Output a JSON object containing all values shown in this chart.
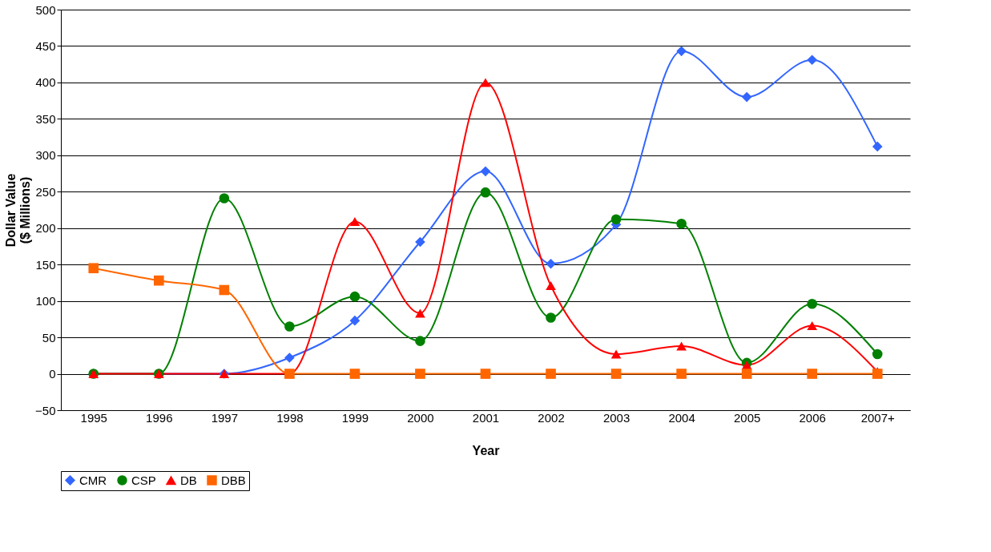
{
  "chart_data": {
    "type": "line",
    "xlabel": "Year",
    "ylabel": "Dollar Value\n($ Millions)",
    "categories": [
      "1995",
      "1996",
      "1997",
      "1998",
      "1999",
      "2000",
      "2001",
      "2002",
      "2003",
      "2004",
      "2005",
      "2006",
      "2007+"
    ],
    "series": [
      {
        "name": "CMR",
        "color": "#3366ff",
        "marker": "diamond",
        "values": [
          0,
          0,
          0,
          22,
          73,
          181,
          278,
          151,
          205,
          443,
          380,
          431,
          312
        ]
      },
      {
        "name": "CSP",
        "color": "#008000",
        "marker": "circle",
        "values": [
          0,
          0,
          241,
          65,
          106,
          45,
          249,
          77,
          212,
          206,
          15,
          96,
          27
        ]
      },
      {
        "name": "DB",
        "color": "#ff0000",
        "marker": "triangle",
        "values": [
          0,
          0,
          0,
          0,
          209,
          83,
          400,
          121,
          27,
          38,
          12,
          66,
          3
        ]
      },
      {
        "name": "DBB",
        "color": "#ff6600",
        "marker": "square",
        "values": [
          145,
          128,
          115,
          0,
          0,
          0,
          0,
          0,
          0,
          0,
          0,
          0,
          0
        ]
      }
    ],
    "ylim": [
      -50,
      500
    ],
    "yticks": [
      -50,
      0,
      50,
      100,
      150,
      200,
      250,
      300,
      350,
      400,
      450,
      500
    ],
    "grid": "y",
    "legend": "bottom",
    "line_style": "solid"
  }
}
